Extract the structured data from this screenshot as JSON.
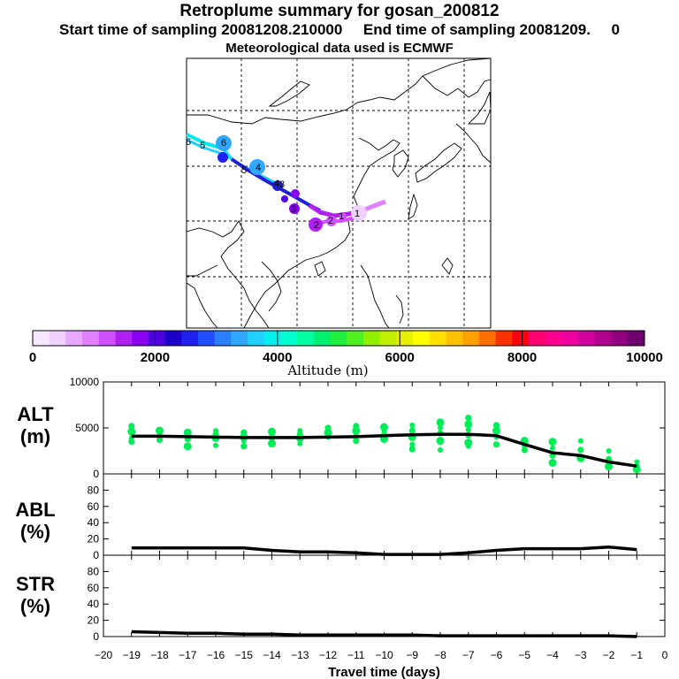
{
  "title": {
    "line1": "Retroplume summary for gosan_200812",
    "line2": "Start time of sampling 20081208.210000     End time of sampling 20081209.     0",
    "line3": "Meteorological data used is ECMWF"
  },
  "colors": {
    "colorbar": [
      "#f8e8ff",
      "#f0d0ff",
      "#e8a8ff",
      "#e080ff",
      "#d050ff",
      "#b020f0",
      "#8a00f0",
      "#5000e0",
      "#1a00c8",
      "#2020f0",
      "#2050ff",
      "#2880ff",
      "#30a8ff",
      "#20d0ff",
      "#00f0f0",
      "#00ffd0",
      "#00ffa0",
      "#00f070",
      "#20f040",
      "#50f020",
      "#90f000",
      "#c0f000",
      "#e8f000",
      "#ffff00",
      "#ffe000",
      "#ffc000",
      "#ffa000",
      "#ff7000",
      "#ff3000",
      "#ff0010",
      "#ff0070",
      "#ff0090",
      "#f000a0",
      "#d000a0",
      "#b00090",
      "#900080",
      "#700070"
    ],
    "alt_points": "#00ee55",
    "line": "#000000"
  },
  "colorbar": {
    "ticks": [
      "0",
      "2000",
      "4000",
      "6000",
      "8000",
      "10000"
    ],
    "label": "Altitude (m)"
  },
  "panels": {
    "alt": {
      "label1": "ALT",
      "label2": "(m)"
    },
    "abl": {
      "label1": "ABL",
      "label2": "(%)"
    },
    "str": {
      "label1": "STR",
      "label2": "(%)"
    }
  },
  "map_markers": [
    "6",
    "5",
    "4",
    "3",
    "2",
    "1"
  ],
  "chart_data": [
    {
      "type": "line",
      "title": "ALT (m)",
      "x": [
        -19,
        -18,
        -17,
        -16,
        -15,
        -14,
        -13,
        -12,
        -11,
        -10,
        -9,
        -8,
        -7,
        -6,
        -5,
        -4,
        -3,
        -2,
        -1
      ],
      "values": [
        4100,
        4100,
        4050,
        4000,
        3950,
        3950,
        3950,
        4000,
        4050,
        4150,
        4250,
        4300,
        4300,
        4150,
        3200,
        2300,
        2000,
        1300,
        850
      ],
      "points": [
        [
          -19,
          5200
        ],
        [
          -19,
          4600
        ],
        [
          -19,
          3900
        ],
        [
          -19,
          3500
        ],
        [
          -18,
          4700
        ],
        [
          -18,
          4200
        ],
        [
          -18,
          3700
        ],
        [
          -17,
          4500
        ],
        [
          -17,
          4200
        ],
        [
          -17,
          3800
        ],
        [
          -17,
          3000
        ],
        [
          -16,
          4700
        ],
        [
          -16,
          4300
        ],
        [
          -16,
          3900
        ],
        [
          -16,
          3100
        ],
        [
          -15,
          4500
        ],
        [
          -15,
          4000
        ],
        [
          -15,
          3600
        ],
        [
          -15,
          3000
        ],
        [
          -14,
          4600
        ],
        [
          -14,
          4300
        ],
        [
          -14,
          3900
        ],
        [
          -14,
          3300
        ],
        [
          -13,
          4700
        ],
        [
          -13,
          4300
        ],
        [
          -13,
          3900
        ],
        [
          -13,
          3300
        ],
        [
          -12,
          5000
        ],
        [
          -12,
          4500
        ],
        [
          -12,
          4000
        ],
        [
          -11,
          5200
        ],
        [
          -11,
          4700
        ],
        [
          -11,
          4200
        ],
        [
          -11,
          3600
        ],
        [
          -10,
          5100
        ],
        [
          -10,
          4700
        ],
        [
          -10,
          4200
        ],
        [
          -10,
          3800
        ],
        [
          -9,
          5300
        ],
        [
          -9,
          4700
        ],
        [
          -9,
          4000
        ],
        [
          -9,
          3200
        ],
        [
          -9,
          2700
        ],
        [
          -8,
          5600
        ],
        [
          -8,
          5000
        ],
        [
          -8,
          4400
        ],
        [
          -8,
          3600
        ],
        [
          -8,
          2600
        ],
        [
          -7,
          6100
        ],
        [
          -7,
          5400
        ],
        [
          -7,
          4800
        ],
        [
          -7,
          4200
        ],
        [
          -7,
          3400
        ],
        [
          -7,
          3000
        ],
        [
          -6,
          5300
        ],
        [
          -6,
          4700
        ],
        [
          -6,
          4000
        ],
        [
          -6,
          3200
        ],
        [
          -5,
          3600
        ],
        [
          -5,
          3000
        ],
        [
          -5,
          2600
        ],
        [
          -4,
          3500
        ],
        [
          -4,
          2800
        ],
        [
          -4,
          2000
        ],
        [
          -4,
          1200
        ],
        [
          -3,
          3600
        ],
        [
          -3,
          2600
        ],
        [
          -3,
          1700
        ],
        [
          -2,
          2500
        ],
        [
          -2,
          1600
        ],
        [
          -2,
          800
        ],
        [
          -1,
          1300
        ],
        [
          -1,
          800
        ],
        [
          -1,
          500
        ]
      ],
      "xlim": [
        -20,
        0
      ],
      "ylim": [
        0,
        10000
      ],
      "yticks": [
        "0",
        "5000",
        "10000"
      ]
    },
    {
      "type": "line",
      "title": "ABL (%)",
      "x": [
        -19,
        -18,
        -17,
        -16,
        -15,
        -14,
        -13,
        -12,
        -11,
        -10,
        -9,
        -8,
        -7,
        -6,
        -5,
        -4,
        -3,
        -2,
        -1
      ],
      "values": [
        9,
        9,
        9,
        9,
        9,
        6,
        4,
        4,
        3,
        1,
        1,
        1,
        3,
        6,
        8,
        8,
        8,
        10,
        7
      ],
      "xlim": [
        -20,
        0
      ],
      "ylim": [
        0,
        100
      ],
      "yticks": [
        "0",
        "20",
        "40",
        "60",
        "80"
      ]
    },
    {
      "type": "line",
      "title": "STR (%)",
      "x": [
        -19,
        -18,
        -17,
        -16,
        -15,
        -14,
        -13,
        -12,
        -11,
        -10,
        -9,
        -8,
        -7,
        -6,
        -5,
        -4,
        -3,
        -2,
        -1
      ],
      "values": [
        6,
        5,
        4,
        4,
        3,
        3,
        2,
        2,
        2,
        2,
        2,
        1,
        1,
        1,
        1,
        1,
        1,
        1,
        0
      ],
      "xlim": [
        -20,
        0
      ],
      "ylim": [
        0,
        100
      ],
      "yticks": [
        "0",
        "20",
        "40",
        "60",
        "80"
      ],
      "xticks": [
        "−20",
        "−19",
        "−18",
        "−17",
        "−16",
        "−15",
        "−14",
        "−13",
        "−12",
        "−11",
        "−10",
        "−9",
        "−8",
        "−7",
        "−6",
        "−5",
        "−4",
        "−3",
        "−2",
        "−1",
        "0"
      ],
      "xlabel": "Travel time (days)"
    }
  ]
}
